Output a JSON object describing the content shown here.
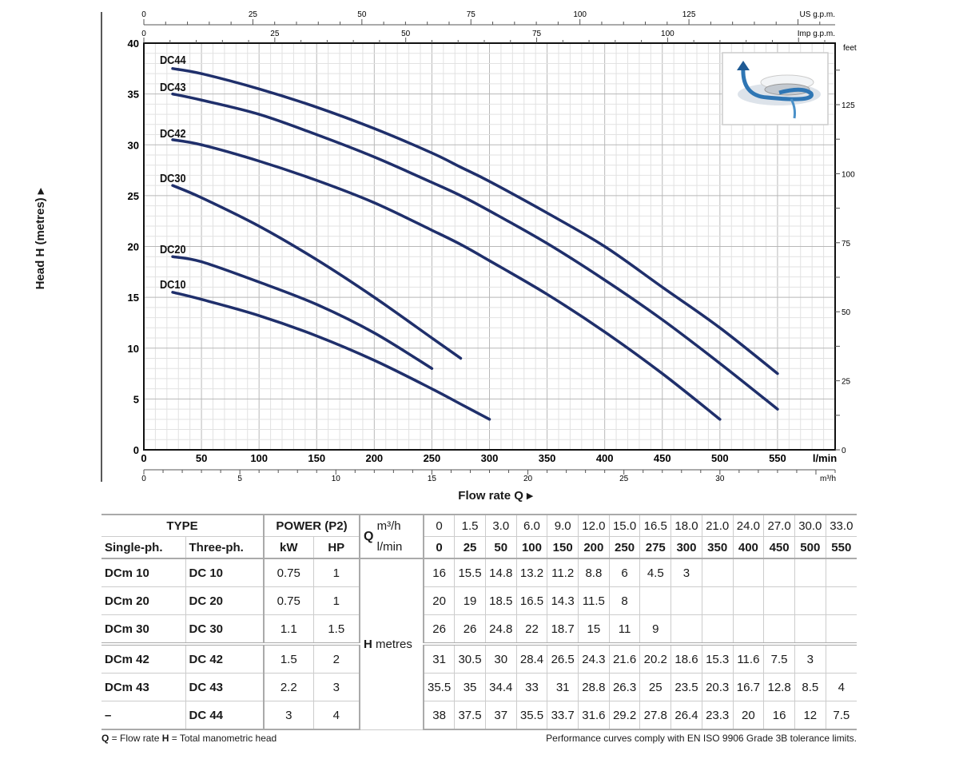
{
  "chart_data": {
    "type": "line",
    "xlabel": "Flow rate Q",
    "ylabel": "Head H (metres)",
    "x_unit": "l/min",
    "xlim": [
      0,
      600
    ],
    "ylim": [
      0,
      40
    ],
    "grid": true,
    "x_ticks": [
      0,
      50,
      100,
      150,
      200,
      250,
      300,
      350,
      400,
      450,
      500,
      550
    ],
    "y_ticks": [
      0,
      5,
      10,
      15,
      20,
      25,
      30,
      35,
      40
    ],
    "secondary_axes": {
      "us_gpm": {
        "label": "US g.p.m.",
        "ticks": [
          0,
          25,
          50,
          75,
          100,
          125
        ]
      },
      "imp_gpm": {
        "label": "Imp g.p.m.",
        "ticks": [
          0,
          25,
          50,
          75,
          100
        ]
      },
      "m3h": {
        "label": "m³/h",
        "ticks": [
          0,
          5,
          10,
          15,
          20,
          25,
          30
        ]
      },
      "feet": {
        "label": "feet",
        "ticks": [
          0,
          25,
          50,
          75,
          100,
          125
        ]
      }
    },
    "series": [
      {
        "name": "DC44",
        "x": [
          25,
          50,
          100,
          150,
          200,
          250,
          275,
          300,
          350,
          400,
          450,
          500,
          550
        ],
        "y": [
          37.5,
          37,
          35.5,
          33.7,
          31.6,
          29.2,
          27.8,
          26.4,
          23.3,
          20,
          16,
          12,
          7.5
        ]
      },
      {
        "name": "DC43",
        "x": [
          25,
          50,
          100,
          150,
          200,
          250,
          275,
          300,
          350,
          400,
          450,
          500,
          550
        ],
        "y": [
          35,
          34.4,
          33,
          31,
          28.8,
          26.3,
          25,
          23.5,
          20.3,
          16.7,
          12.8,
          8.5,
          4
        ]
      },
      {
        "name": "DC42",
        "x": [
          25,
          50,
          100,
          150,
          200,
          250,
          275,
          300,
          350,
          400,
          450,
          500
        ],
        "y": [
          30.5,
          30,
          28.4,
          26.5,
          24.3,
          21.6,
          20.2,
          18.6,
          15.3,
          11.6,
          7.5,
          3
        ]
      },
      {
        "name": "DC30",
        "x": [
          25,
          50,
          100,
          150,
          200,
          250,
          275
        ],
        "y": [
          26,
          24.8,
          22,
          18.7,
          15,
          11,
          9
        ]
      },
      {
        "name": "DC20",
        "x": [
          25,
          50,
          100,
          150,
          200,
          250
        ],
        "y": [
          19,
          18.5,
          16.5,
          14.3,
          11.5,
          8
        ]
      },
      {
        "name": "DC10",
        "x": [
          25,
          50,
          100,
          150,
          200,
          250,
          275,
          300
        ],
        "y": [
          15.5,
          14.8,
          13.2,
          11.2,
          8.8,
          6,
          4.5,
          3
        ]
      }
    ],
    "line_color": "#1f2f6b"
  },
  "table": {
    "type_header": "TYPE",
    "power_header": "POWER (P2)",
    "single_ph": "Single-ph.",
    "three_ph": "Three-ph.",
    "kw": "kW",
    "hp": "HP",
    "q_label": "Q",
    "m3h_label": "m³/h",
    "lmin_label": "l/min",
    "h_label": "H",
    "h_unit": "metres",
    "m3h": [
      "0",
      "1.5",
      "3.0",
      "6.0",
      "9.0",
      "12.0",
      "15.0",
      "16.5",
      "18.0",
      "21.0",
      "24.0",
      "27.0",
      "30.0",
      "33.0"
    ],
    "lmin": [
      "0",
      "25",
      "50",
      "100",
      "150",
      "200",
      "250",
      "275",
      "300",
      "350",
      "400",
      "450",
      "500",
      "550"
    ],
    "rows": [
      {
        "single": "DCm 10",
        "three": "DC 10",
        "kw": "0.75",
        "hp": "1",
        "h": [
          "16",
          "15.5",
          "14.8",
          "13.2",
          "11.2",
          "8.8",
          "6",
          "4.5",
          "3",
          "",
          "",
          "",
          "",
          ""
        ]
      },
      {
        "single": "DCm 20",
        "three": "DC 20",
        "kw": "0.75",
        "hp": "1",
        "h": [
          "20",
          "19",
          "18.5",
          "16.5",
          "14.3",
          "11.5",
          "8",
          "",
          "",
          "",
          "",
          "",
          "",
          ""
        ]
      },
      {
        "single": "DCm 30",
        "three": "DC 30",
        "kw": "1.1",
        "hp": "1.5",
        "h": [
          "26",
          "26",
          "24.8",
          "22",
          "18.7",
          "15",
          "11",
          "9",
          "",
          "",
          "",
          "",
          "",
          ""
        ]
      },
      {
        "single": "DCm 42",
        "three": "DC 42",
        "kw": "1.5",
        "hp": "2",
        "h": [
          "31",
          "30.5",
          "30",
          "28.4",
          "26.5",
          "24.3",
          "21.6",
          "20.2",
          "18.6",
          "15.3",
          "11.6",
          "7.5",
          "3",
          ""
        ]
      },
      {
        "single": "DCm 43",
        "three": "DC 43",
        "kw": "2.2",
        "hp": "3",
        "h": [
          "35.5",
          "35",
          "34.4",
          "33",
          "31",
          "28.8",
          "26.3",
          "25",
          "23.5",
          "20.3",
          "16.7",
          "12.8",
          "8.5",
          "4"
        ]
      },
      {
        "single": "–",
        "three": "DC 44",
        "kw": "3",
        "hp": "4",
        "h": [
          "38",
          "37.5",
          "37",
          "35.5",
          "33.7",
          "31.6",
          "29.2",
          "27.8",
          "26.4",
          "23.3",
          "20",
          "16",
          "12",
          "7.5"
        ]
      }
    ]
  },
  "footnote_left_q": "Q",
  "footnote_left_q_text": " = Flow rate  ",
  "footnote_left_h": "H",
  "footnote_left_h_text": " = Total manometric head",
  "footnote_right": "Performance curves comply with EN ISO 9906 Grade 3B tolerance limits.",
  "pump_icon": "peripheral-impeller-flow-icon"
}
